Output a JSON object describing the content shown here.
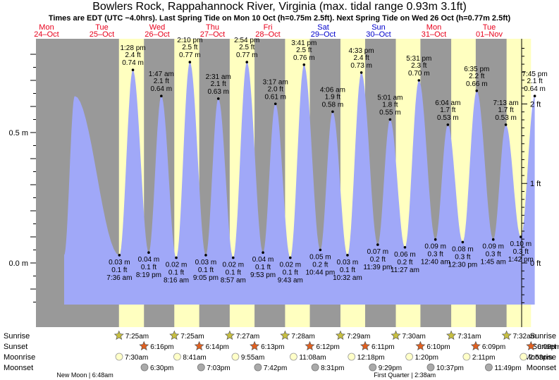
{
  "title": "Bowlers Rock, Rappahannock River, Virginia (max. tidal range 0.93m 3.1ft)",
  "subtitle": "Times are EDT (UTC −4.0hrs). Last Spring Tide on Mon 10 Oct (h=0.75m 2.5ft). Next Spring Tide on Wed 26 Oct (h=0.77m 2.5ft)",
  "days": [
    {
      "dow": "Mon",
      "date": "24–Oct",
      "weekend": false
    },
    {
      "dow": "Tue",
      "date": "25–Oct",
      "weekend": false
    },
    {
      "dow": "Wed",
      "date": "26–Oct",
      "weekend": false
    },
    {
      "dow": "Thu",
      "date": "27–Oct",
      "weekend": false
    },
    {
      "dow": "Fri",
      "date": "28–Oct",
      "weekend": false
    },
    {
      "dow": "Sat",
      "date": "29–Oct",
      "weekend": true
    },
    {
      "dow": "Sun",
      "date": "30–Oct",
      "weekend": true
    },
    {
      "dow": "Mon",
      "date": "31–Oct",
      "weekend": false
    },
    {
      "dow": "Tue",
      "date": "01–Nov",
      "weekend": false
    }
  ],
  "colors": {
    "weekday": "#e8001c",
    "weekend": "#0000cc",
    "night": "#999999",
    "day": "#ffffc0",
    "water": "#a0a8f8"
  },
  "chart_data": {
    "type": "area",
    "ylabel_left_unit": "m",
    "ylabel_right_unit": "ft",
    "ylim": [
      -0.16,
      0.86
    ],
    "y_ticks_m": [
      {
        "value": 0.5,
        "label": "0.5 m"
      },
      {
        "value": 0.0,
        "label": "0.0 m"
      }
    ],
    "y_ticks_ft": [
      {
        "value": 2,
        "label": "2 ft"
      },
      {
        "value": 1,
        "label": "1 ft"
      },
      {
        "value": 0,
        "label": "0 ft"
      }
    ],
    "tides": [
      {
        "type": "low",
        "day": 1,
        "time": "7:36 am",
        "m": "0.03 m",
        "ft": "0.1 ft",
        "h": 0.03
      },
      {
        "type": "high",
        "day": 1,
        "time": "1:28 pm",
        "m": "0.74 m",
        "ft": "2.4 ft",
        "h": 0.74
      },
      {
        "type": "low",
        "day": 1,
        "time": "8:19 pm",
        "m": "0.04 m",
        "ft": "0.1 ft",
        "h": 0.04
      },
      {
        "type": "high",
        "day": 2,
        "time": "1:47 am",
        "m": "0.64 m",
        "ft": "2.1 ft",
        "h": 0.64
      },
      {
        "type": "low",
        "day": 2,
        "time": "8:16 am",
        "m": "0.02 m",
        "ft": "0.1 ft",
        "h": 0.02
      },
      {
        "type": "high",
        "day": 2,
        "time": "2:10 pm",
        "m": "0.77 m",
        "ft": "2.5 ft",
        "h": 0.77
      },
      {
        "type": "low",
        "day": 2,
        "time": "9:05 pm",
        "m": "0.03 m",
        "ft": "0.1 ft",
        "h": 0.03
      },
      {
        "type": "high",
        "day": 3,
        "time": "2:31 am",
        "m": "0.63 m",
        "ft": "2.1 ft",
        "h": 0.63
      },
      {
        "type": "low",
        "day": 3,
        "time": "8:57 am",
        "m": "0.02 m",
        "ft": "0.1 ft",
        "h": 0.02
      },
      {
        "type": "high",
        "day": 3,
        "time": "2:54 pm",
        "m": "0.77 m",
        "ft": "2.5 ft",
        "h": 0.77
      },
      {
        "type": "low",
        "day": 3,
        "time": "9:53 pm",
        "m": "0.04 m",
        "ft": "0.1 ft",
        "h": 0.04
      },
      {
        "type": "high",
        "day": 4,
        "time": "3:17 am",
        "m": "0.61 m",
        "ft": "2.0 ft",
        "h": 0.61
      },
      {
        "type": "low",
        "day": 4,
        "time": "9:43 am",
        "m": "0.02 m",
        "ft": "0.1 ft",
        "h": 0.02
      },
      {
        "type": "high",
        "day": 4,
        "time": "3:41 pm",
        "m": "0.76 m",
        "ft": "2.5 ft",
        "h": 0.76
      },
      {
        "type": "low",
        "day": 4,
        "time": "10:44 pm",
        "m": "0.05 m",
        "ft": "0.2 ft",
        "h": 0.05
      },
      {
        "type": "high",
        "day": 5,
        "time": "4:06 am",
        "m": "0.58 m",
        "ft": "1.9 ft",
        "h": 0.58
      },
      {
        "type": "low",
        "day": 5,
        "time": "10:32 am",
        "m": "0.03 m",
        "ft": "0.1 ft",
        "h": 0.03
      },
      {
        "type": "high",
        "day": 5,
        "time": "4:33 pm",
        "m": "0.73 m",
        "ft": "2.4 ft",
        "h": 0.73
      },
      {
        "type": "low",
        "day": 5,
        "time": "11:39 pm",
        "m": "0.07 m",
        "ft": "0.2 ft",
        "h": 0.07
      },
      {
        "type": "high",
        "day": 6,
        "time": "5:01 am",
        "m": "0.55 m",
        "ft": "1.8 ft",
        "h": 0.55
      },
      {
        "type": "low",
        "day": 6,
        "time": "11:27 am",
        "m": "0.06 m",
        "ft": "0.2 ft",
        "h": 0.06
      },
      {
        "type": "high",
        "day": 6,
        "time": "5:31 pm",
        "m": "0.70 m",
        "ft": "2.3 ft",
        "h": 0.7
      },
      {
        "type": "low",
        "day": 7,
        "time": "12:40 am",
        "m": "0.09 m",
        "ft": "0.3 ft",
        "h": 0.09
      },
      {
        "type": "high",
        "day": 7,
        "time": "6:04 am",
        "m": "0.53 m",
        "ft": "1.7 ft",
        "h": 0.53
      },
      {
        "type": "low",
        "day": 7,
        "time": "12:30 pm",
        "m": "0.08 m",
        "ft": "0.3 ft",
        "h": 0.08
      },
      {
        "type": "high",
        "day": 7,
        "time": "6:35 pm",
        "m": "0.66 m",
        "ft": "2.2 ft",
        "h": 0.66
      },
      {
        "type": "low",
        "day": 8,
        "time": "1:45 am",
        "m": "0.09 m",
        "ft": "0.3 ft",
        "h": 0.09
      },
      {
        "type": "high",
        "day": 8,
        "time": "7:13 am",
        "m": "0.53 m",
        "ft": "1.7 ft",
        "h": 0.53
      },
      {
        "type": "low",
        "day": 8,
        "time": "1:42 pm",
        "m": "0.10 m",
        "ft": "0.3 ft",
        "h": 0.1
      },
      {
        "type": "high",
        "day": 8,
        "time": "7:45 pm",
        "m": "0.64 m",
        "ft": "2.1 ft",
        "h": 0.64
      }
    ]
  },
  "astro": {
    "row_labels": [
      "Sunrise",
      "Sunset",
      "Moonrise",
      "Moonset"
    ],
    "sunrise": [
      {
        "day": 1,
        "time": "7:25am"
      },
      {
        "day": 2,
        "time": "7:25am"
      },
      {
        "day": 3,
        "time": "7:27am"
      },
      {
        "day": 4,
        "time": "7:28am"
      },
      {
        "day": 5,
        "time": "7:29am"
      },
      {
        "day": 6,
        "time": "7:30am"
      },
      {
        "day": 7,
        "time": "7:31am"
      },
      {
        "day": 8,
        "time": "7:32am"
      }
    ],
    "sunset": [
      {
        "day": 1,
        "time": "6:16pm"
      },
      {
        "day": 2,
        "time": "6:14pm"
      },
      {
        "day": 3,
        "time": "6:13pm"
      },
      {
        "day": 4,
        "time": "6:12pm"
      },
      {
        "day": 5,
        "time": "6:11pm"
      },
      {
        "day": 6,
        "time": "6:10pm"
      },
      {
        "day": 7,
        "time": "6:09pm"
      },
      {
        "day": 8,
        "time": "6:08pm"
      }
    ],
    "moonrise": [
      {
        "day": 1,
        "time": "7:30am"
      },
      {
        "day": 2,
        "time": "8:41am"
      },
      {
        "day": 3,
        "time": "9:55am"
      },
      {
        "day": 4,
        "time": "11:08am"
      },
      {
        "day": 5,
        "time": "12:18pm"
      },
      {
        "day": 6,
        "time": "1:20pm"
      },
      {
        "day": 7,
        "time": "2:11pm"
      },
      {
        "day": 8,
        "time": "2:53pm"
      }
    ],
    "moonset": [
      {
        "day": 1,
        "time": "6:30pm"
      },
      {
        "day": 2,
        "time": "7:03pm"
      },
      {
        "day": 3,
        "time": "7:42pm"
      },
      {
        "day": 4,
        "time": "8:31pm"
      },
      {
        "day": 5,
        "time": "9:29pm"
      },
      {
        "day": 6,
        "time": "10:37pm"
      },
      {
        "day": 7,
        "time": "11:49pm"
      }
    ],
    "moon_phases": [
      {
        "text": "New Moon | 6:48am",
        "day": 1,
        "time": "6:48am"
      },
      {
        "text": "First Quarter | 2:38am",
        "day": 7,
        "time": "2:38am"
      }
    ]
  }
}
